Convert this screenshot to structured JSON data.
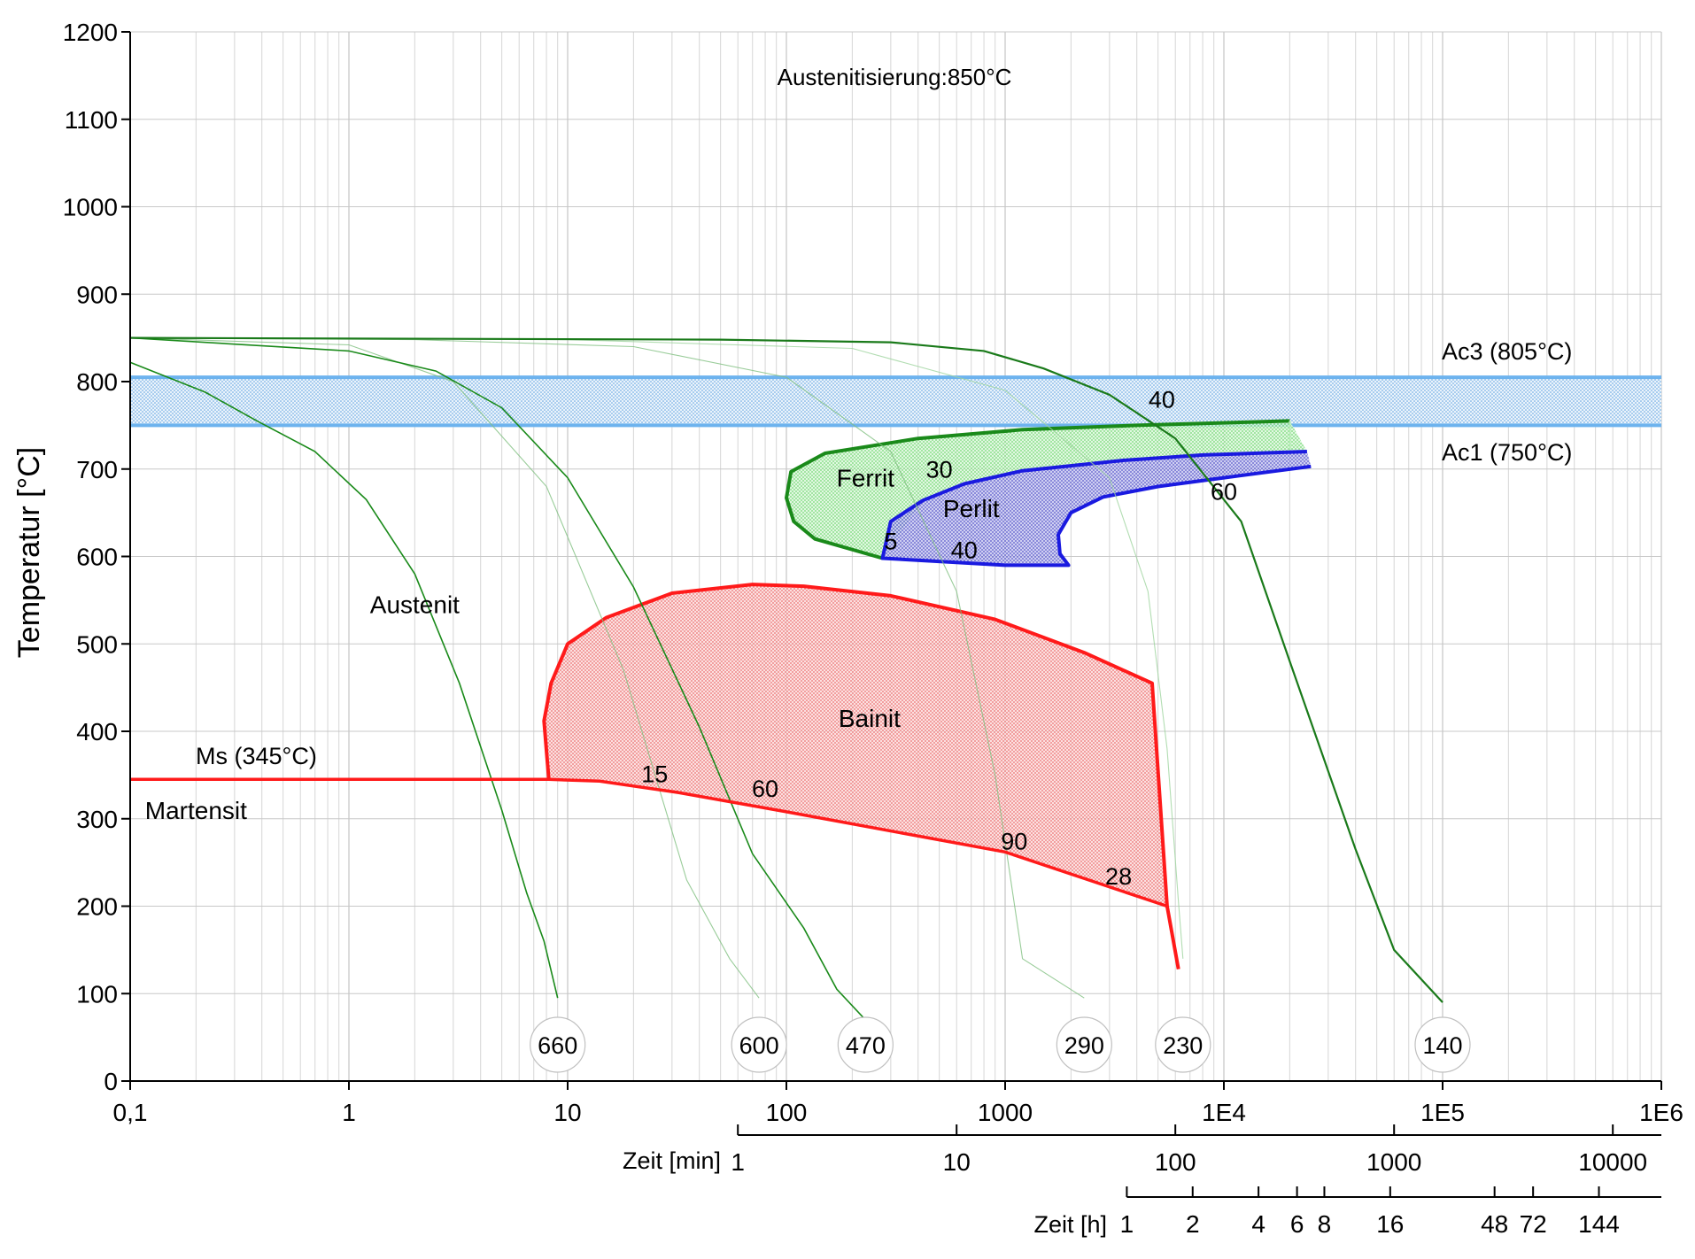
{
  "chart_data": {
    "type": "line",
    "title": "Austenitisierung:850°C",
    "ylabel": "Temperatur [°C]",
    "x_scale": "log",
    "xlim": [
      0.1,
      1000000
    ],
    "ylim": [
      0,
      1200
    ],
    "grid": true,
    "x_ticks": [
      {
        "value": 0.1,
        "label": "0,1"
      },
      {
        "value": 1,
        "label": "1"
      },
      {
        "value": 10,
        "label": "10"
      },
      {
        "value": 100,
        "label": "100"
      },
      {
        "value": 1000,
        "label": "1000"
      },
      {
        "value": 10000,
        "label": "1E4"
      },
      {
        "value": 100000,
        "label": "1E5"
      },
      {
        "value": 1000000,
        "label": "1E6"
      }
    ],
    "y_ticks": [
      0,
      100,
      200,
      300,
      400,
      500,
      600,
      700,
      800,
      900,
      1000,
      1100,
      1200
    ],
    "secondary_axes": [
      {
        "label": "Zeit [min]",
        "ticks": [
          {
            "value": 60,
            "label": "1"
          },
          {
            "value": 600,
            "label": "10"
          },
          {
            "value": 6000,
            "label": "100"
          },
          {
            "value": 60000,
            "label": "1000"
          },
          {
            "value": 600000,
            "label": "10000"
          }
        ]
      },
      {
        "label": "Zeit [h]",
        "ticks": [
          {
            "value": 3600,
            "label": "1"
          },
          {
            "value": 7200,
            "label": "2"
          },
          {
            "value": 14400,
            "label": "4"
          },
          {
            "value": 21600,
            "label": "6"
          },
          {
            "value": 28800,
            "label": "8"
          },
          {
            "value": 57600,
            "label": "16"
          },
          {
            "value": 172800,
            "label": "48"
          },
          {
            "value": 259200,
            "label": "72"
          },
          {
            "value": 518400,
            "label": "144"
          }
        ]
      }
    ],
    "bands": [
      {
        "label": "Ac3 (805°C)",
        "value": 805
      },
      {
        "label": "Ac1 (750°C)",
        "value": 750
      }
    ],
    "ms_line": {
      "label": "Ms (345°C)",
      "points": [
        [
          0.1,
          345
        ],
        [
          8.2,
          345
        ],
        [
          14,
          343
        ],
        [
          32,
          330
        ],
        [
          100,
          308
        ],
        [
          1000,
          262
        ],
        [
          5500,
          200
        ]
      ]
    },
    "regions": [
      {
        "name": "Ferrit",
        "color": "#1a8a1a",
        "fill": "#8fe08f",
        "boundary": [
          [
            20000,
            755
          ],
          [
            4000,
            750
          ],
          [
            1200,
            745
          ],
          [
            400,
            735
          ],
          [
            150,
            718
          ],
          [
            105,
            697
          ],
          [
            100,
            667
          ],
          [
            108,
            640
          ],
          [
            135,
            620
          ],
          [
            275,
            598
          ]
        ],
        "extension": [
          [
            20000,
            755
          ],
          [
            20000,
            720
          ]
        ]
      },
      {
        "name": "Perlit",
        "color": "#1a1ae0",
        "fill": "#6b6bd8",
        "boundary": [
          [
            24000,
            720
          ],
          [
            8000,
            716
          ],
          [
            3500,
            710
          ],
          [
            1200,
            698
          ],
          [
            650,
            683
          ],
          [
            420,
            664
          ],
          [
            300,
            640
          ],
          [
            275,
            598
          ],
          [
            1000,
            590
          ],
          [
            1950,
            590
          ],
          [
            1780,
            603
          ],
          [
            1750,
            625
          ],
          [
            2000,
            650
          ],
          [
            2800,
            668
          ],
          [
            5000,
            680
          ],
          [
            10000,
            690
          ],
          [
            25000,
            703
          ]
        ]
      },
      {
        "name": "Bainit",
        "color": "#ff1a1a",
        "fill": "#f07a7a",
        "boundary": [
          [
            8.2,
            345
          ],
          [
            7.8,
            412
          ],
          [
            8.4,
            455
          ],
          [
            10,
            500
          ],
          [
            15,
            530
          ],
          [
            30,
            558
          ],
          [
            70,
            568
          ],
          [
            120,
            566
          ],
          [
            300,
            555
          ],
          [
            900,
            528
          ],
          [
            2300,
            490
          ],
          [
            4700,
            455
          ],
          [
            5500,
            200
          ],
          [
            6200,
            128
          ]
        ]
      }
    ],
    "cooling_curves": [
      {
        "label": "660",
        "points": [
          [
            0.1,
            822
          ],
          [
            0.22,
            788
          ],
          [
            0.38,
            755
          ],
          [
            0.7,
            720
          ],
          [
            1.2,
            665
          ],
          [
            2,
            580
          ],
          [
            3.2,
            455
          ],
          [
            5,
            310
          ],
          [
            6.5,
            215
          ],
          [
            7.8,
            160
          ],
          [
            9,
            95
          ]
        ]
      },
      {
        "label": "600",
        "points": [
          [
            0.1,
            850
          ],
          [
            1,
            842
          ],
          [
            3,
            800
          ],
          [
            8,
            680
          ],
          [
            18,
            470
          ],
          [
            35,
            230
          ],
          [
            55,
            140
          ],
          [
            75,
            95
          ]
        ]
      },
      {
        "label": "470",
        "points": [
          [
            0.1,
            850
          ],
          [
            1,
            835
          ],
          [
            2.5,
            812
          ],
          [
            5,
            770
          ],
          [
            10,
            690
          ],
          [
            20,
            565
          ],
          [
            40,
            405
          ],
          [
            70,
            260
          ],
          [
            120,
            175
          ],
          [
            170,
            105
          ],
          [
            230,
            70
          ]
        ]
      },
      {
        "label": "290",
        "points": [
          [
            0.1,
            850
          ],
          [
            2,
            848
          ],
          [
            20,
            840
          ],
          [
            100,
            805
          ],
          [
            300,
            720
          ],
          [
            600,
            560
          ],
          [
            900,
            350
          ],
          [
            1200,
            140
          ],
          [
            2300,
            95
          ]
        ]
      },
      {
        "label": "230",
        "points": [
          [
            0.1,
            850
          ],
          [
            10,
            848
          ],
          [
            200,
            838
          ],
          [
            1000,
            790
          ],
          [
            3000,
            690
          ],
          [
            4500,
            560
          ],
          [
            5500,
            380
          ],
          [
            6200,
            205
          ],
          [
            6500,
            140
          ]
        ]
      },
      {
        "label": "140",
        "points": [
          [
            0.1,
            850
          ],
          [
            50,
            848
          ],
          [
            300,
            845
          ],
          [
            800,
            835
          ],
          [
            1500,
            815
          ],
          [
            3000,
            785
          ],
          [
            6000,
            735
          ],
          [
            12000,
            640
          ],
          [
            20000,
            480
          ],
          [
            40000,
            265
          ],
          [
            60000,
            150
          ],
          [
            100000,
            90
          ]
        ]
      }
    ],
    "annotations": [
      {
        "text": "Austenit",
        "x": 2,
        "y": 535
      },
      {
        "text": "Bainit",
        "x": 240,
        "y": 405
      },
      {
        "text": "Perlit",
        "x": 700,
        "y": 645
      },
      {
        "text": "Ferrit",
        "x": 230,
        "y": 680
      },
      {
        "text": "Martensit",
        "x": 0.2,
        "y": 300
      },
      {
        "text": "40",
        "x": 5200,
        "y": 770
      },
      {
        "text": "60",
        "x": 10000,
        "y": 665
      },
      {
        "text": "30",
        "x": 500,
        "y": 690
      },
      {
        "text": "5",
        "x": 300,
        "y": 608
      },
      {
        "text": "40",
        "x": 650,
        "y": 598
      },
      {
        "text": "15",
        "x": 25,
        "y": 342
      },
      {
        "text": "60",
        "x": 80,
        "y": 325
      },
      {
        "text": "90",
        "x": 1100,
        "y": 265
      },
      {
        "text": "28",
        "x": 3300,
        "y": 225
      }
    ],
    "hardness_values": [
      {
        "label": "660",
        "x": 9
      },
      {
        "label": "600",
        "x": 75
      },
      {
        "label": "470",
        "x": 230
      },
      {
        "label": "290",
        "x": 2300
      },
      {
        "label": "230",
        "x": 6500
      },
      {
        "label": "140",
        "x": 100000
      }
    ]
  }
}
